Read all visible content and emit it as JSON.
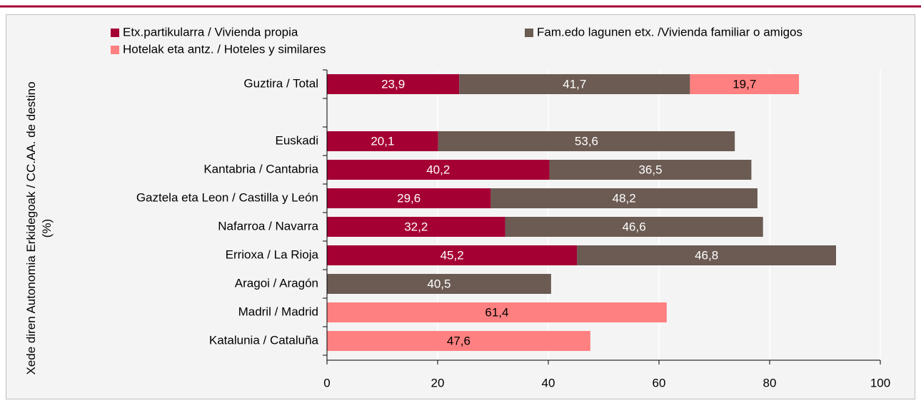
{
  "chart_data": {
    "type": "stacked-barh",
    "y_label": "Xede diren Autonomia Erkidegoak / CC.AA. de destino (%)",
    "categories": [
      "Guztira / Total",
      null,
      "Euskadi",
      "Kantabria / Cantabria",
      "Gaztela eta Leon / Castilla y León",
      "Nafarroa / Navarra",
      "Errioxa / La Rioja",
      "Aragoi / Aragón",
      "Madril / Madrid",
      "Katalunia / Cataluña"
    ],
    "series": [
      {
        "name": "Etx.partikularra / Vivienda propia",
        "color": "#a50034",
        "values": [
          23.9,
          null,
          20.1,
          40.2,
          29.6,
          32.2,
          45.2,
          null,
          null,
          null
        ],
        "value_labels": [
          "23,9",
          null,
          "20,1",
          "40,2",
          "29,6",
          "32,2",
          "45,2",
          null,
          null,
          null
        ]
      },
      {
        "name": "Fam.edo lagunen etx. /Vivienda familiar o amigos",
        "color": "#6b5b53",
        "values": [
          41.7,
          null,
          53.6,
          36.5,
          48.2,
          46.6,
          46.8,
          40.5,
          null,
          null
        ],
        "value_labels": [
          "41,7",
          null,
          "53,6",
          "36,5",
          "48,2",
          "46,6",
          "46,8",
          "40,5",
          null,
          null
        ]
      },
      {
        "name": "Hotelak eta antz. / Hoteles y similares",
        "color": "#ff8080",
        "values": [
          19.7,
          null,
          null,
          null,
          null,
          null,
          null,
          null,
          61.4,
          47.6
        ],
        "value_labels": [
          "19,7",
          null,
          null,
          null,
          null,
          null,
          null,
          null,
          "61,4",
          "47,6"
        ]
      }
    ],
    "xlim": [
      0,
      100
    ],
    "xticks": [
      0,
      20,
      40,
      60,
      80,
      100
    ],
    "grid": true
  }
}
